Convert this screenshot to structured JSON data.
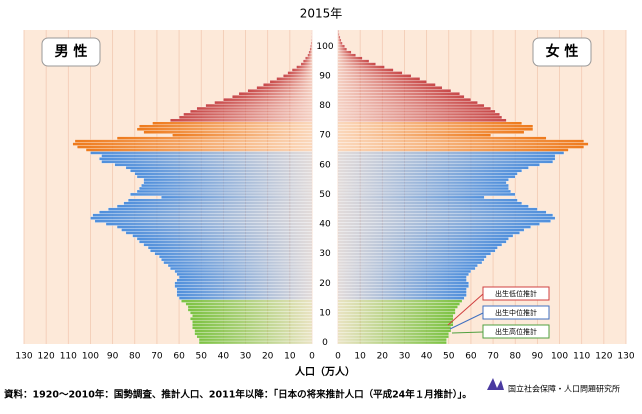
{
  "chart_data": {
    "type": "pyramid",
    "title": "2015年",
    "xlabel": "人口（万人）",
    "ages": [
      0,
      1,
      2,
      3,
      4,
      5,
      6,
      7,
      8,
      9,
      10,
      11,
      12,
      13,
      14,
      15,
      16,
      17,
      18,
      19,
      20,
      21,
      22,
      23,
      24,
      25,
      26,
      27,
      28,
      29,
      30,
      31,
      32,
      33,
      34,
      35,
      36,
      37,
      38,
      39,
      40,
      41,
      42,
      43,
      44,
      45,
      46,
      47,
      48,
      49,
      50,
      51,
      52,
      53,
      54,
      55,
      56,
      57,
      58,
      59,
      60,
      61,
      62,
      63,
      64,
      65,
      66,
      67,
      68,
      69,
      70,
      71,
      72,
      73,
      74,
      75,
      76,
      77,
      78,
      79,
      80,
      81,
      82,
      83,
      84,
      85,
      86,
      87,
      88,
      89,
      90,
      91,
      92,
      93,
      94,
      95,
      96,
      97,
      98,
      99,
      100,
      101,
      102,
      103,
      104,
      105
    ],
    "series": [
      {
        "name": "男 性",
        "values": [
          51,
          51,
          52,
          53,
          53,
          54,
          54,
          54,
          55,
          54,
          55,
          56,
          56,
          57,
          59,
          60,
          61,
          61,
          61,
          62,
          62,
          61,
          60,
          61,
          62,
          64,
          65,
          67,
          68,
          69,
          71,
          73,
          74,
          76,
          78,
          79,
          81,
          84,
          86,
          88,
          93,
          98,
          100,
          99,
          96,
          92,
          88,
          85,
          83,
          68,
          82,
          79,
          78,
          77,
          76,
          76,
          79,
          80,
          82,
          84,
          89,
          95,
          96,
          95,
          100,
          102,
          106,
          108,
          107,
          88,
          63,
          76,
          79,
          78,
          72,
          64,
          60,
          58,
          55,
          52,
          48,
          44,
          40,
          36,
          33,
          29,
          25,
          22,
          19,
          16,
          13,
          11,
          9,
          7,
          5,
          4,
          3,
          2,
          1.5,
          1,
          0.7,
          0.5,
          0.3,
          0.2,
          0.1,
          0.05
        ]
      },
      {
        "name": "女 性",
        "values": [
          49,
          49,
          50,
          50,
          51,
          51,
          52,
          52,
          52,
          52,
          53,
          53,
          54,
          55,
          56,
          57,
          58,
          58,
          58,
          59,
          59,
          58,
          58,
          59,
          60,
          62,
          63,
          65,
          66,
          67,
          69,
          71,
          72,
          74,
          76,
          77,
          79,
          82,
          84,
          87,
          91,
          96,
          98,
          97,
          94,
          90,
          86,
          83,
          81,
          66,
          80,
          78,
          77,
          77,
          76,
          77,
          80,
          81,
          83,
          86,
          91,
          97,
          98,
          98,
          102,
          104,
          111,
          113,
          111,
          94,
          69,
          84,
          88,
          88,
          83,
          76,
          74,
          73,
          71,
          69,
          66,
          63,
          60,
          57,
          55,
          51,
          47,
          44,
          40,
          37,
          33,
          29,
          25,
          21,
          17,
          14,
          11,
          8,
          6,
          4,
          3,
          2,
          1.4,
          1,
          0.6,
          0.4
        ]
      }
    ],
    "color_bands": [
      {
        "max_age": 14,
        "color": "#7cc242"
      },
      {
        "max_age": 64,
        "color": "#4f8fdc"
      },
      {
        "max_age": 74,
        "color": "#ee7a1c"
      },
      {
        "max_age": 105,
        "color": "#c84848"
      }
    ],
    "xlim": [
      0,
      130
    ],
    "xticks": [
      0,
      10,
      20,
      30,
      40,
      50,
      60,
      70,
      80,
      90,
      100,
      110,
      120,
      130
    ],
    "ylim": [
      0,
      106
    ],
    "yticks": [
      0,
      10,
      20,
      30,
      40,
      50,
      60,
      70,
      80,
      90,
      100
    ],
    "annotations": [
      "出生低位推計",
      "出生中位推計",
      "出生高位推計"
    ],
    "source": "資料：1920～2010年：国勢調査、推計人口、2011年以降：「日本の将来推計人口（平成24年１月推計）」。",
    "organization": "国立社会保障・人口問題研究所"
  }
}
